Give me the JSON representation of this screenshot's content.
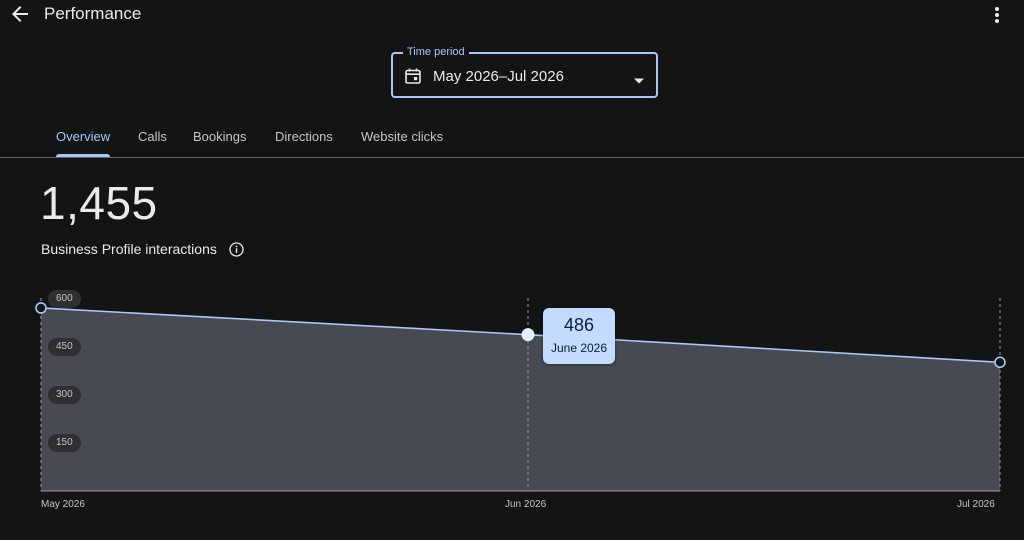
{
  "header": {
    "title": "Performance"
  },
  "time_period": {
    "label": "Time period",
    "value": "May 2026–Jul 2026"
  },
  "tabs": [
    {
      "label": "Overview",
      "active": true
    },
    {
      "label": "Calls",
      "active": false
    },
    {
      "label": "Bookings",
      "active": false
    },
    {
      "label": "Directions",
      "active": false
    },
    {
      "label": "Website clicks",
      "active": false
    }
  ],
  "metric": {
    "value": "1,455",
    "label": "Business Profile interactions"
  },
  "tooltip": {
    "value": "486",
    "label": "June 2026"
  },
  "colors": {
    "accent": "#a8c7fa",
    "background": "#141414",
    "area_fill": "#474a52",
    "tooltip_bg": "#c2dbff"
  },
  "chart_data": {
    "type": "area",
    "categories": [
      "May 2026",
      "Jun 2026",
      "Jul 2026"
    ],
    "values": [
      569,
      486,
      400
    ],
    "yticks": [
      "600",
      "450",
      "300",
      "150"
    ],
    "ylim": [
      0,
      600
    ],
    "grid": false,
    "highlighted_point": "Jun 2026"
  }
}
